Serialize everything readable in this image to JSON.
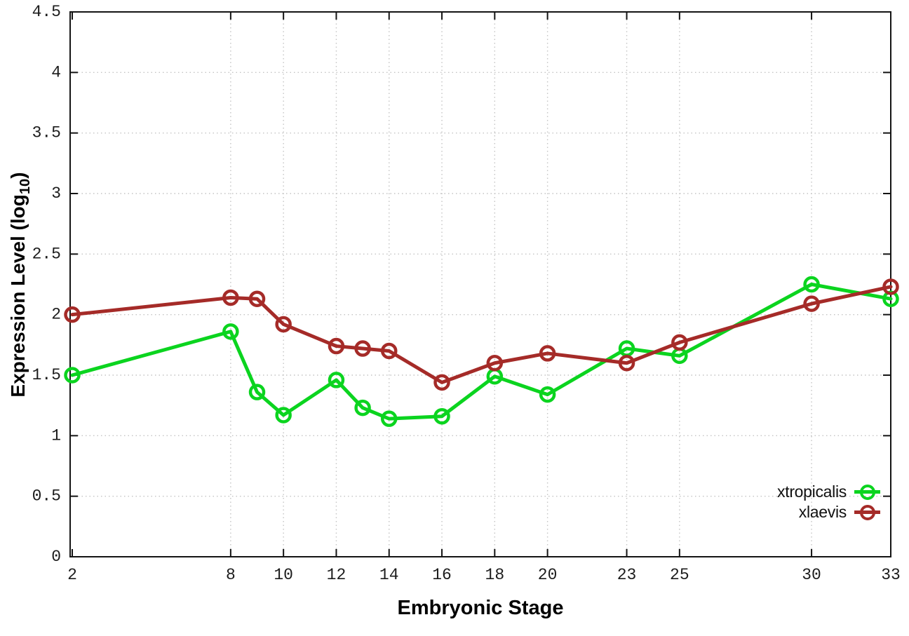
{
  "chart_data": {
    "type": "line",
    "title": "",
    "xlabel": "Embryonic Stage",
    "ylabel": "Expression Level (log10)",
    "ylabel_parts": {
      "pre": "Expression Level (log",
      "sub": "10",
      "post": ")"
    },
    "x": [
      2,
      8,
      9,
      10,
      12,
      13,
      14,
      16,
      18,
      20,
      23,
      25,
      30,
      33
    ],
    "series": [
      {
        "name": "xtropicalis",
        "color": "#0bd41f",
        "values": [
          1.5,
          1.86,
          1.36,
          1.17,
          1.46,
          1.23,
          1.14,
          1.16,
          1.49,
          1.34,
          1.72,
          1.66,
          2.25,
          2.13
        ]
      },
      {
        "name": "xlaevis",
        "color": "#a52b28",
        "values": [
          2.0,
          2.14,
          2.13,
          1.92,
          1.74,
          1.72,
          1.7,
          1.44,
          1.6,
          1.68,
          1.6,
          1.77,
          2.09,
          2.23
        ]
      }
    ],
    "xlim": [
      2,
      33
    ],
    "ylim": [
      0,
      4.5
    ],
    "xticks": [
      2,
      8,
      10,
      12,
      14,
      16,
      18,
      20,
      23,
      25,
      30,
      33
    ],
    "yticks": [
      0,
      0.5,
      1,
      1.5,
      2,
      2.5,
      3,
      3.5,
      4,
      4.5
    ],
    "grid": true,
    "grid_style": "dotted",
    "legend_position": "inside-bottom-right",
    "colors": {
      "axis": "#141414",
      "grid": "#c4c4c4",
      "tick_label": "#1c1c1c"
    }
  }
}
